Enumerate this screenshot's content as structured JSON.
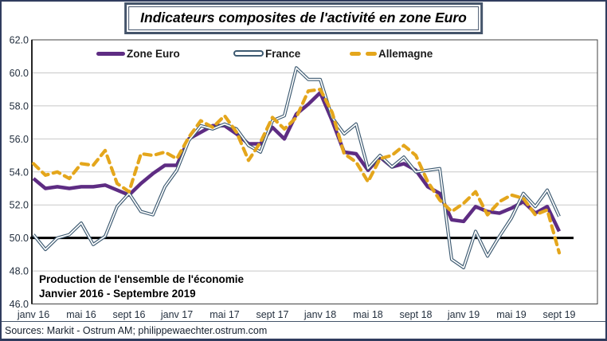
{
  "window": {
    "title": "Indicateurs composites de l'activité en zone Euro"
  },
  "footer": {
    "sources": "Sources: Markit - Ostrum AM; philippewaechter.ostrum.com"
  },
  "colors": {
    "frame_border": "#303c5e",
    "title_border": "#44546a",
    "grid": "#c8c8c8",
    "axis": "#404040",
    "reference_line": "#000000",
    "tick_text": "#24303f",
    "zone_euro": "#5e2c83",
    "france": "#3d5a71",
    "allemagne": "#e4a61c"
  },
  "chart_data": {
    "type": "line",
    "title": "Indicateurs composites de l'activité en zone Euro",
    "annotation": {
      "line1": "Production de l'ensemble de l'économie",
      "line2": "Janvier 2016 - Septembre 2019"
    },
    "grid": true,
    "legend_position": "top-inside",
    "ylim": [
      46.0,
      62.0
    ],
    "y_tick_labels": [
      "62.0",
      "60.0",
      "58.0",
      "56.0",
      "54.0",
      "52.0",
      "50.0",
      "48.0",
      "46.0"
    ],
    "reference_line": 50.0,
    "x_months": "janv 2016 - sept 2019 (45 points mensuels)",
    "x_ticks": [
      {
        "m": 0,
        "label": "janv 16"
      },
      {
        "m": 4,
        "label": "mai 16"
      },
      {
        "m": 8,
        "label": "sept 16"
      },
      {
        "m": 12,
        "label": "janv 17"
      },
      {
        "m": 16,
        "label": "mai 17"
      },
      {
        "m": 20,
        "label": "sept 17"
      },
      {
        "m": 24,
        "label": "janv 18"
      },
      {
        "m": 28,
        "label": "mai 18"
      },
      {
        "m": 32,
        "label": "sept 18"
      },
      {
        "m": 36,
        "label": "janv 19"
      },
      {
        "m": 40,
        "label": "mai 19"
      },
      {
        "m": 44,
        "label": "sept 19"
      }
    ],
    "series": [
      {
        "name": "Zone Euro",
        "color": "#5e2c83",
        "style": "solid-thick",
        "values": [
          53.6,
          53.0,
          53.1,
          53.0,
          53.1,
          53.1,
          53.2,
          52.9,
          52.6,
          53.3,
          53.9,
          54.4,
          54.4,
          56.0,
          56.4,
          56.8,
          56.8,
          56.3,
          55.7,
          55.7,
          56.7,
          56.0,
          57.5,
          58.1,
          58.8,
          57.1,
          55.2,
          55.1,
          54.1,
          54.9,
          54.3,
          54.5,
          54.1,
          53.1,
          52.7,
          51.1,
          51.0,
          51.9,
          51.6,
          51.5,
          51.8,
          52.2,
          51.5,
          51.9,
          50.4
        ]
      },
      {
        "name": "France",
        "color": "#3d5a71",
        "style": "double-outline",
        "values": [
          50.2,
          49.3,
          50.0,
          50.2,
          50.9,
          49.6,
          50.1,
          51.9,
          52.7,
          51.6,
          51.4,
          53.1,
          54.1,
          55.9,
          56.8,
          56.6,
          56.9,
          56.6,
          55.6,
          55.2,
          57.1,
          57.4,
          60.3,
          59.6,
          59.6,
          57.3,
          56.3,
          56.9,
          54.2,
          55.0,
          54.3,
          54.9,
          54.0,
          54.1,
          54.2,
          48.7,
          48.2,
          50.4,
          48.9,
          50.1,
          51.2,
          52.7,
          51.9,
          52.9,
          51.3
        ]
      },
      {
        "name": "Allemagne",
        "color": "#e4a61c",
        "style": "dashed",
        "values": [
          54.5,
          53.8,
          54.0,
          53.6,
          54.5,
          54.4,
          55.3,
          53.3,
          52.8,
          55.1,
          55.0,
          55.2,
          54.8,
          56.1,
          57.1,
          56.7,
          57.4,
          56.4,
          54.7,
          55.8,
          57.3,
          56.6,
          57.3,
          58.9,
          59.0,
          57.6,
          55.1,
          54.6,
          53.4,
          54.8,
          55.0,
          55.6,
          55.0,
          53.4,
          52.3,
          51.6,
          52.1,
          52.8,
          51.4,
          52.2,
          52.6,
          52.4,
          51.4,
          51.7,
          49.1
        ]
      }
    ]
  }
}
